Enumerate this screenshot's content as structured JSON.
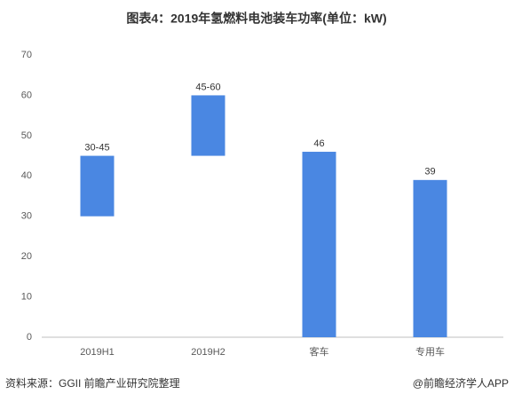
{
  "chart_data": {
    "type": "floating-bar",
    "title": "图表4：2019年氢燃料电池装车功率(单位：kW)",
    "categories": [
      "2019H1",
      "2019H2",
      "客车",
      "专用车"
    ],
    "starts": [
      30,
      45,
      0,
      0
    ],
    "values": [
      45,
      60,
      46,
      39
    ],
    "value_labels": [
      "30-45",
      "45-60",
      "46",
      "39"
    ],
    "color": "#4a87e2",
    "ylim": [
      0,
      70
    ],
    "yticks": [
      0,
      10,
      20,
      30,
      40,
      50,
      60,
      70
    ],
    "grid": false,
    "source": "资料来源：GGII 前瞻产业研究院整理",
    "credit": "@前瞻经济学人APP"
  }
}
